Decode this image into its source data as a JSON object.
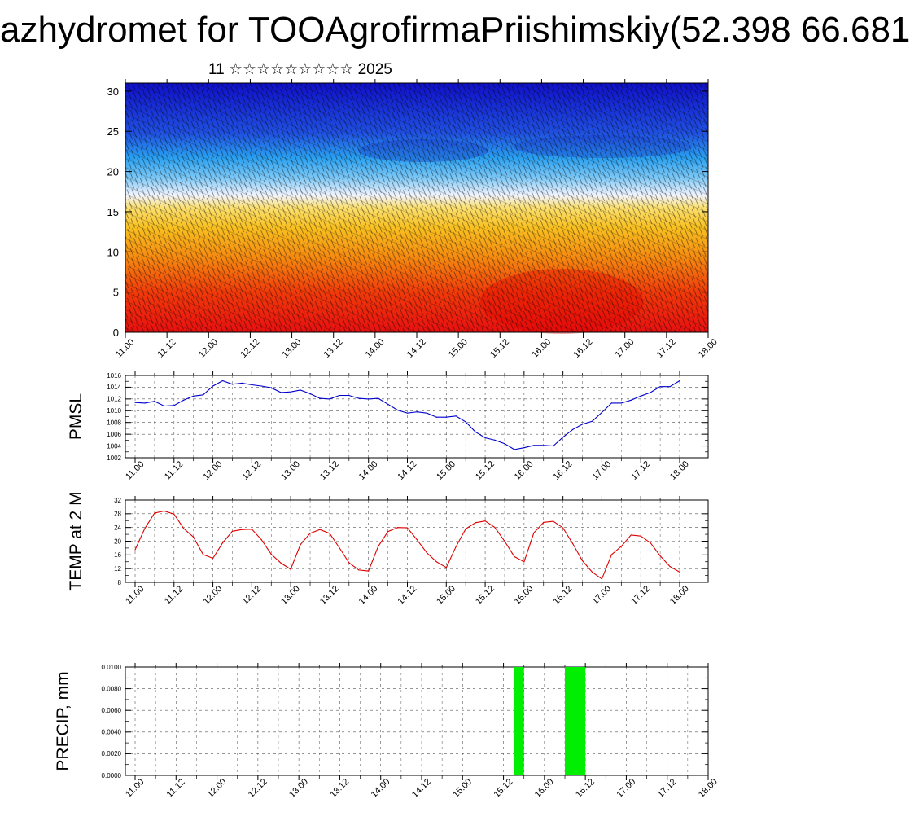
{
  "title": "azhydromet for TOOAgrofirmaPriishimskiy(52.398 66.681",
  "subtitle": "11 ☆☆☆☆☆☆☆☆☆ 2025",
  "colors": {
    "pmsl_line": "#0000cc",
    "temp_line": "#dd0000",
    "precip_bar": "#00ee00",
    "grid": "#555555"
  },
  "chart_data": [
    {
      "type": "heatmap",
      "name": "vertical-profile",
      "x_ticks": [
        "11.00",
        "11.12",
        "12.00",
        "12.12",
        "13.00",
        "13.12",
        "14.00",
        "14.12",
        "15.00",
        "15.12",
        "16.00",
        "16.12",
        "17.00",
        "17.12",
        "18.00"
      ],
      "y_ticks": [
        "0",
        "5",
        "10",
        "15",
        "20",
        "25",
        "30"
      ],
      "ylim": [
        0,
        31
      ],
      "color_scale": "red (low levels) to yellow to white to blue (upper levels) with wind barbs overlay"
    },
    {
      "type": "line",
      "name": "pmsl",
      "ylabel": "PMSL",
      "ylim": [
        1002,
        1016
      ],
      "y_ticks": [
        "1002",
        "1004",
        "1006",
        "1008",
        "1010",
        "1012",
        "1014",
        "1016"
      ],
      "x_ticks": [
        "11.00",
        "11.12",
        "12.00",
        "12.12",
        "13.00",
        "13.12",
        "14.00",
        "14.12",
        "15.00",
        "15.12",
        "16.00",
        "16.12",
        "17.00",
        "17.12",
        "18.00"
      ],
      "x_hours": [
        0,
        3,
        6,
        9,
        12,
        15,
        18,
        21,
        24,
        27,
        30,
        33,
        36,
        39,
        42,
        45,
        48,
        51,
        54,
        57,
        60,
        63,
        66,
        69,
        72,
        75,
        78,
        81,
        84,
        87,
        90,
        93,
        96,
        99,
        102,
        105,
        108,
        111,
        114,
        117,
        120,
        123,
        126,
        129,
        132,
        135,
        138,
        141,
        144,
        147,
        150,
        153,
        156,
        159,
        162,
        165,
        168
      ],
      "values": [
        1011.4,
        1011.3,
        1011.6,
        1010.8,
        1010.9,
        1011.8,
        1012.5,
        1012.7,
        1014.2,
        1015.1,
        1014.5,
        1014.7,
        1014.4,
        1014.2,
        1013.9,
        1013.1,
        1013.2,
        1013.5,
        1012.9,
        1012.1,
        1012.0,
        1012.6,
        1012.6,
        1012.1,
        1012.0,
        1012.1,
        1011.1,
        1010.1,
        1009.6,
        1009.8,
        1009.6,
        1008.9,
        1008.9,
        1009.1,
        1008.1,
        1006.4,
        1005.4,
        1005.0,
        1004.4,
        1003.4,
        1003.7,
        1004.1,
        1004.1,
        1004.0,
        1005.5,
        1006.8,
        1007.7,
        1008.2,
        1009.7,
        1011.3,
        1011.3,
        1011.8,
        1012.5,
        1013.1,
        1014.1,
        1014.1,
        1015.1
      ]
    },
    {
      "type": "line",
      "name": "temp",
      "ylabel": "TEMP at 2 M",
      "ylim": [
        8,
        32
      ],
      "y_ticks": [
        "8",
        "12",
        "16",
        "20",
        "24",
        "28",
        "32"
      ],
      "x_ticks": [
        "11.00",
        "11.12",
        "12.00",
        "12.12",
        "13.00",
        "13.12",
        "14.00",
        "14.12",
        "15.00",
        "15.12",
        "16.00",
        "16.12",
        "17.00",
        "17.12",
        "18.00"
      ],
      "x_hours": [
        0,
        3,
        6,
        9,
        12,
        15,
        18,
        21,
        24,
        27,
        30,
        33,
        36,
        39,
        42,
        45,
        48,
        51,
        54,
        57,
        60,
        63,
        66,
        69,
        72,
        75,
        78,
        81,
        84,
        87,
        90,
        93,
        96,
        99,
        102,
        105,
        108,
        111,
        114,
        117,
        120,
        123,
        126,
        129,
        132,
        135,
        138,
        141,
        144,
        147,
        150,
        153,
        156,
        159,
        162,
        165,
        168
      ],
      "values": [
        17.5,
        23.7,
        28.2,
        28.8,
        27.9,
        23.7,
        21.2,
        16.1,
        15.0,
        19.5,
        22.9,
        23.4,
        23.5,
        20.4,
        16.2,
        13.6,
        11.8,
        19.0,
        22.3,
        23.4,
        22.3,
        18.1,
        13.7,
        11.6,
        11.3,
        18.5,
        22.8,
        24.0,
        23.9,
        20.4,
        16.6,
        14.0,
        12.3,
        18.4,
        23.6,
        25.4,
        25.9,
        24.0,
        20.0,
        15.5,
        14.0,
        22.4,
        25.5,
        25.8,
        23.9,
        19.3,
        14.3,
        11.0,
        9.0,
        16.1,
        18.5,
        21.8,
        21.5,
        19.5,
        15.7,
        12.6,
        11.0
      ]
    },
    {
      "type": "bar",
      "name": "precip",
      "ylabel": "PRECIP, mm",
      "ylim": [
        0,
        0.01
      ],
      "y_ticks": [
        "0.0000",
        "0.0020",
        "0.0040",
        "0.0060",
        "0.0080",
        "0.0100"
      ],
      "x_ticks": [
        "11.00",
        "11.12",
        "12.00",
        "12.12",
        "13.00",
        "13.12",
        "14.00",
        "14.12",
        "15.00",
        "15.12",
        "16.00",
        "16.12",
        "17.00",
        "17.12",
        "18.00"
      ],
      "bars": [
        {
          "x_start": 111,
          "x_end": 114,
          "value": 0.01
        },
        {
          "x_start": 126,
          "x_end": 132,
          "value": 0.01
        }
      ]
    }
  ]
}
